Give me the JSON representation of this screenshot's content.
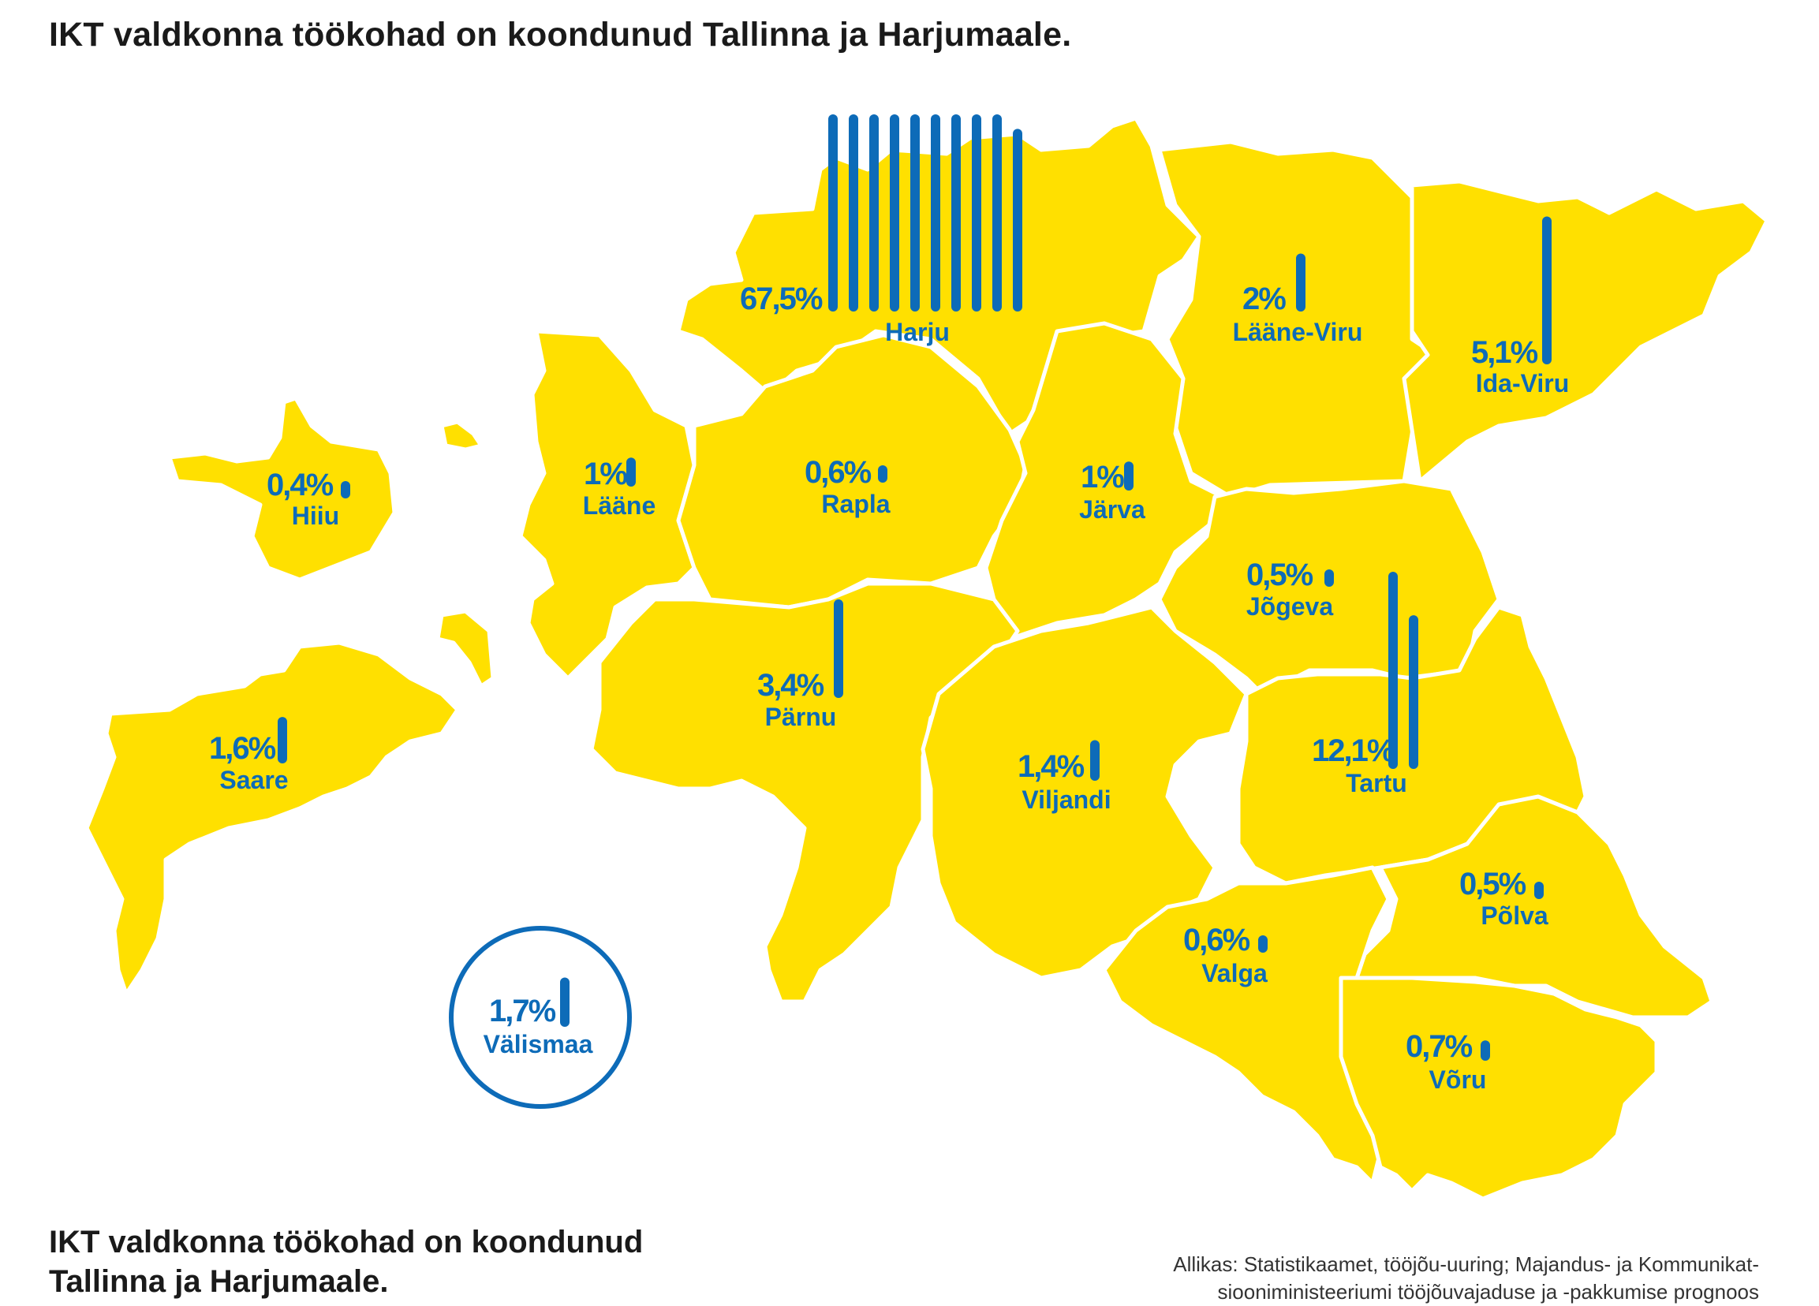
{
  "title": "IKT valdkonna töökohad on koondunud Tallinna ja Harjumaale.",
  "caption": "IKT valdkonna töökohad on koondunud Tallinna ja Harjumaale.",
  "source_line1": "Allikas: Statistikaamet, tööjõu-uuring; Majandus- ja Kommunikat-",
  "source_line2": "siooniministeeriumi tööjõuvajaduse ja -pakkumise prognoos",
  "colors": {
    "land": "#ffe000",
    "bars": "#0d6bb8",
    "text": "#1a1a1a"
  },
  "regions": [
    {
      "name": "Harju",
      "share_label": "67,5%",
      "share": 67.5
    },
    {
      "name": "Lääne-Viru",
      "share_label": "2%",
      "share": 2
    },
    {
      "name": "Ida-Viru",
      "share_label": "5,1%",
      "share": 5.1
    },
    {
      "name": "Hiiu",
      "share_label": "0,4%",
      "share": 0.4
    },
    {
      "name": "Lääne",
      "share_label": "1%",
      "share": 1
    },
    {
      "name": "Rapla",
      "share_label": "0,6%",
      "share": 0.6
    },
    {
      "name": "Järva",
      "share_label": "1%",
      "share": 1
    },
    {
      "name": "Jõgeva",
      "share_label": "0,5%",
      "share": 0.5
    },
    {
      "name": "Saare",
      "share_label": "1,6%",
      "share": 1.6
    },
    {
      "name": "Pärnu",
      "share_label": "3,4%",
      "share": 3.4
    },
    {
      "name": "Viljandi",
      "share_label": "1,4%",
      "share": 1.4
    },
    {
      "name": "Tartu",
      "share_label": "12,1%",
      "share": 12.1
    },
    {
      "name": "Põlva",
      "share_label": "0,5%",
      "share": 0.5
    },
    {
      "name": "Valga",
      "share_label": "0,6%",
      "share": 0.6
    },
    {
      "name": "Võru",
      "share_label": "0,7%",
      "share": 0.7
    },
    {
      "name": "Välismaa",
      "share_label": "1,7%",
      "share": 1.7
    }
  ]
}
